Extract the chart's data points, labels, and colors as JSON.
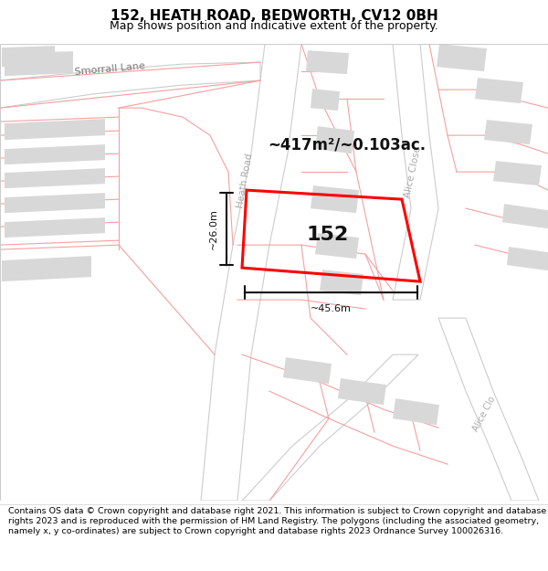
{
  "title": "152, HEATH ROAD, BEDWORTH, CV12 0BH",
  "subtitle": "Map shows position and indicative extent of the property.",
  "footer": "Contains OS data © Crown copyright and database right 2021. This information is subject to Crown copyright and database rights 2023 and is reproduced with the permission of HM Land Registry. The polygons (including the associated geometry, namely x, y co-ordinates) are subject to Crown copyright and database rights 2023 Ordnance Survey 100026316.",
  "area_label": "~417m²/~0.103ac.",
  "property_number": "152",
  "width_label": "~45.6m",
  "height_label": "~26.0m",
  "bg_color": "#ffffff",
  "map_bg": "#ffffff",
  "parcel_line_color": "#f5a0a0",
  "building_fill": "#d8d8d8",
  "road_fill": "#ffffff",
  "road_edge": "#cccccc",
  "plot_color": "#ff0000",
  "road_label_color": "#aaaaaa",
  "title_fontsize": 11,
  "subtitle_fontsize": 9,
  "footer_fontsize": 6.8,
  "map_border_color": "#cccccc"
}
